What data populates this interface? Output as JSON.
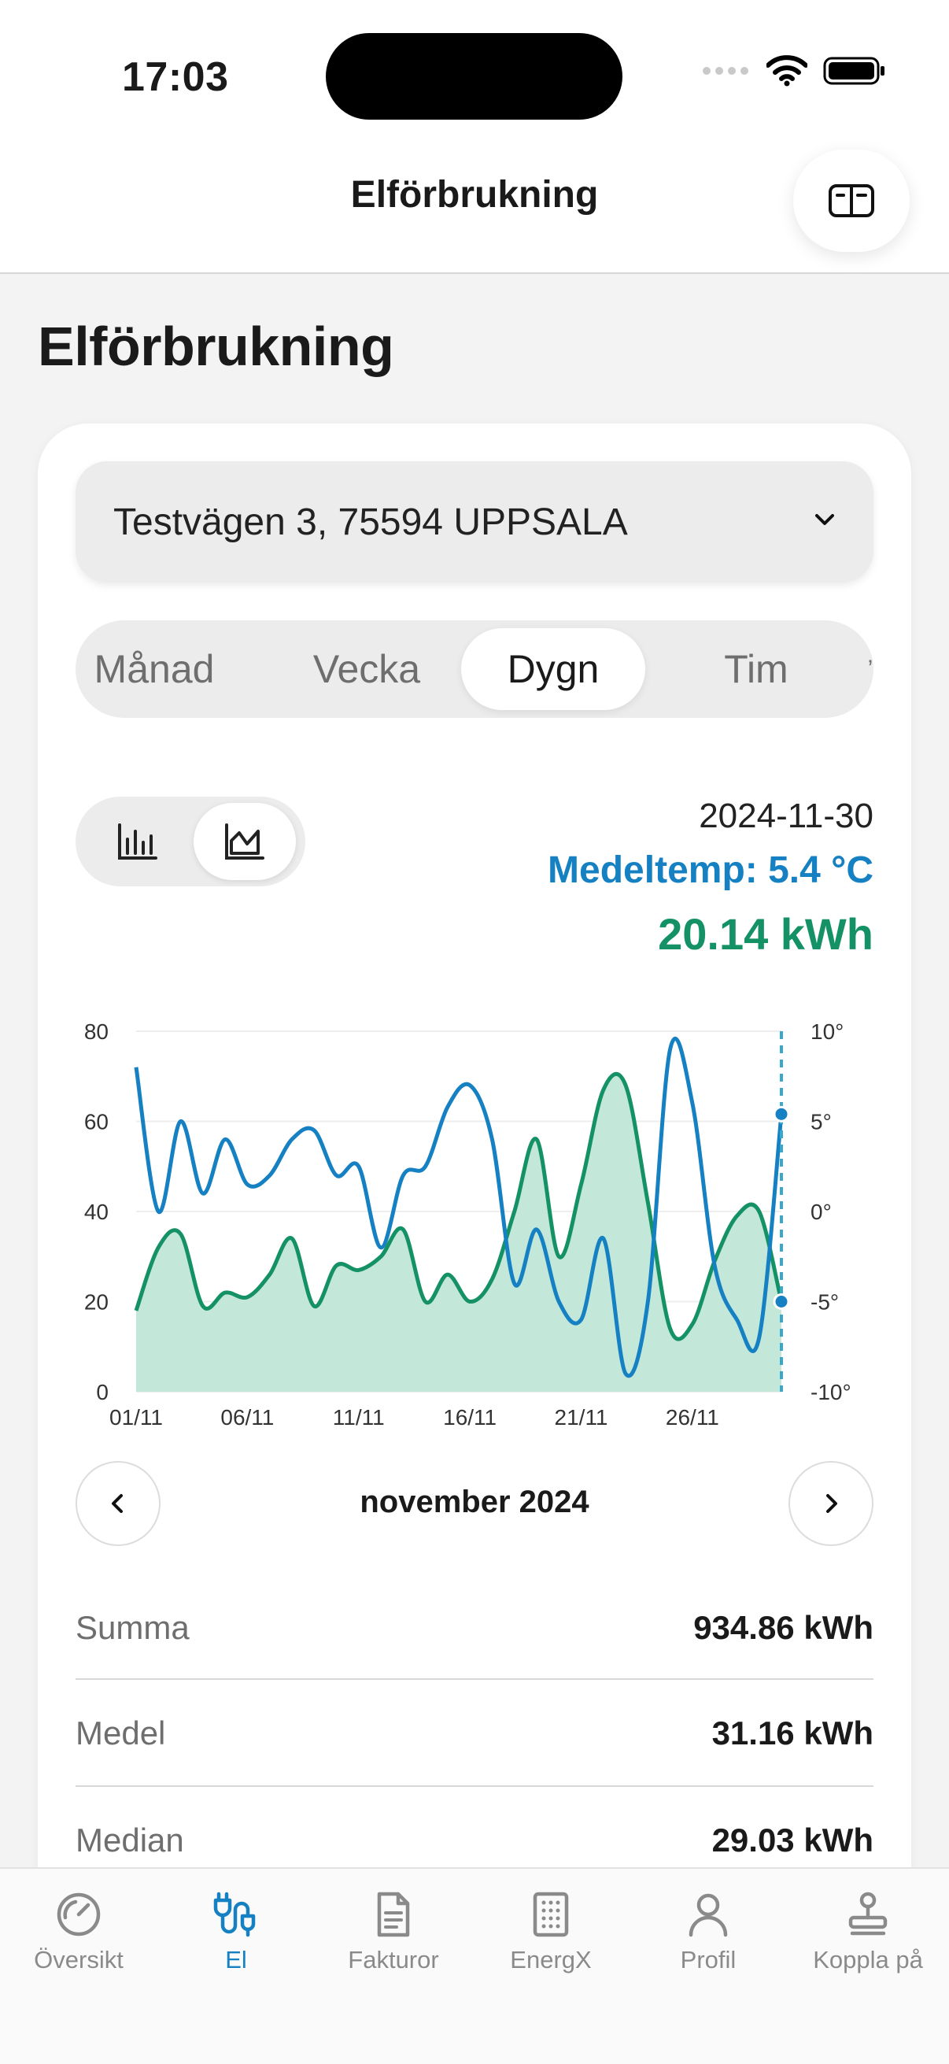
{
  "status": {
    "time": "17:03"
  },
  "nav": {
    "title": "Elförbrukning"
  },
  "page": {
    "title": "Elförbrukning"
  },
  "address": {
    "value": "Testvägen 3, 75594 UPPSALA"
  },
  "segments": [
    {
      "label": "Månad"
    },
    {
      "label": "Vecka"
    },
    {
      "label": "Dygn"
    },
    {
      "label": "Tim"
    }
  ],
  "selected": {
    "date": "2024-11-30",
    "temp": "Medeltemp: 5.4 °C",
    "kwh": "20.14 kWh"
  },
  "colors": {
    "accent": "#1580c2",
    "consumption": "#159166",
    "consumption_fill": "#c3e7d9"
  },
  "chart_data": {
    "type": "area",
    "x": [
      "01/11",
      "02/11",
      "03/11",
      "04/11",
      "05/11",
      "06/11",
      "07/11",
      "08/11",
      "09/11",
      "10/11",
      "11/11",
      "12/11",
      "13/11",
      "14/11",
      "15/11",
      "16/11",
      "17/11",
      "18/11",
      "19/11",
      "20/11",
      "21/11",
      "22/11",
      "23/11",
      "24/11",
      "25/11",
      "26/11",
      "27/11",
      "28/11",
      "29/11",
      "30/11"
    ],
    "x_ticks": [
      "01/11",
      "06/11",
      "11/11",
      "16/11",
      "21/11",
      "26/11"
    ],
    "series": [
      {
        "name": "kWh",
        "axis": "left",
        "values": [
          18,
          32,
          35,
          19,
          22,
          21,
          26,
          34,
          19,
          28,
          27,
          30,
          36,
          20,
          26,
          20,
          25,
          40,
          56,
          30,
          46,
          67,
          68,
          42,
          14,
          15,
          29,
          39,
          40,
          20
        ]
      },
      {
        "name": "°C",
        "axis": "right",
        "values": [
          8,
          0,
          5,
          1,
          4,
          1.5,
          2,
          4,
          4.5,
          2,
          2.5,
          -2,
          2,
          2.5,
          5.8,
          7,
          4,
          -4,
          -1,
          -5,
          -6,
          -1.5,
          -9,
          -5,
          9,
          6,
          -3,
          -6,
          -7,
          5.4
        ]
      }
    ],
    "y_left": {
      "range": [
        0,
        80
      ],
      "ticks": [
        "0",
        "20",
        "40",
        "60",
        "80"
      ]
    },
    "y_right": {
      "range": [
        -10,
        10
      ],
      "ticks": [
        "-10°",
        "-5°",
        "0°",
        "5°",
        "10°"
      ]
    },
    "selected_index": 29
  },
  "month_nav": {
    "label": "november 2024"
  },
  "stats": [
    {
      "label": "Summa",
      "value": "934.86 kWh"
    },
    {
      "label": "Medel",
      "value": "31.16 kWh"
    },
    {
      "label": "Median",
      "value": "29.03 kWh"
    }
  ],
  "tabs": [
    {
      "label": "Översikt"
    },
    {
      "label": "El"
    },
    {
      "label": "Fakturor"
    },
    {
      "label": "EnergX"
    },
    {
      "label": "Profil"
    },
    {
      "label": "Koppla på"
    }
  ]
}
